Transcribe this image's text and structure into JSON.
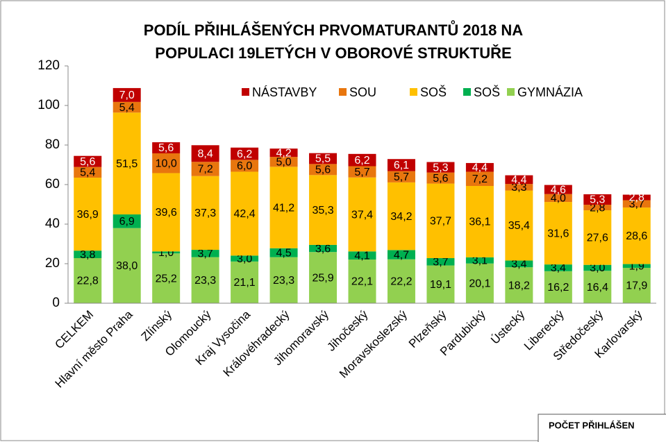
{
  "chart_data": {
    "type": "stacked_bar",
    "title": [
      "PODÍL PŘIHLÁŠENÝCH PRVOMATURANTŮ 2018 NA",
      "POPULACI 19LETÝCH  V OBOROVÉ STRUKTUŘE"
    ],
    "categories": [
      "CELKEM",
      "Hlavní město Praha",
      "Zlínský",
      "Olomoucký",
      "Kraj Vysočina",
      "Královéhradecký",
      "Jihomoravský",
      "Jihočeský",
      "Moravskoslezský",
      "Plzeňský",
      "Pardubický",
      "Ústecký",
      "Liberecký",
      "Středočeský",
      "Karlovarský"
    ],
    "series": [
      {
        "name": "GYMNÁZIA",
        "color": "#92d050",
        "values": [
          22.8,
          38.0,
          25.2,
          23.3,
          21.1,
          23.3,
          25.9,
          22.1,
          22.2,
          19.1,
          20.1,
          18.2,
          16.2,
          16.4,
          17.9
        ],
        "value_labels": [
          "22,8",
          "38,0",
          "25,2",
          "23,3",
          "21,1",
          "23,3",
          "25,9",
          "22,1",
          "22,2",
          "19,1",
          "20,1",
          "18,2",
          "16,2",
          "16,4",
          "17,9"
        ]
      },
      {
        "name": "SOŠ",
        "color": "#00b050",
        "values": [
          3.8,
          6.9,
          1.0,
          3.7,
          3.0,
          4.5,
          3.6,
          4.1,
          4.7,
          3.7,
          3.1,
          3.4,
          3.4,
          3.0,
          1.9
        ],
        "value_labels": [
          "3,8",
          "6,9",
          "1,0",
          "3,7",
          "3,0",
          "4,5",
          "3,6",
          "4,1",
          "4,7",
          "3,7",
          "3,1",
          "3,4",
          "3,4",
          "3,0",
          "1,9"
        ]
      },
      {
        "name": "SOŠ",
        "color": "#ffc000",
        "values": [
          36.9,
          51.5,
          39.6,
          37.3,
          42.4,
          41.2,
          35.3,
          37.4,
          34.2,
          37.7,
          36.1,
          35.4,
          31.6,
          27.6,
          28.6
        ],
        "value_labels": [
          "36,9",
          "51,5",
          "39,6",
          "37,3",
          "42,4",
          "41,2",
          "35,3",
          "37,4",
          "34,2",
          "37,7",
          "36,1",
          "35,4",
          "31,6",
          "27,6",
          "28,6"
        ]
      },
      {
        "name": "SOU",
        "color": "#e8760e",
        "values": [
          5.4,
          5.4,
          10.0,
          7.2,
          6.0,
          5.0,
          5.6,
          5.7,
          5.7,
          5.6,
          7.2,
          3.3,
          4.0,
          2.8,
          3.7
        ],
        "value_labels": [
          "5,4",
          "5,4",
          "10,0",
          "7,2",
          "6,0",
          "5,0",
          "5,6",
          "5,7",
          "5,7",
          "5,6",
          "7,2",
          "3,3",
          "4,0",
          "2,8",
          "3,7"
        ]
      },
      {
        "name": "NÁSTAVBY",
        "color": "#c00000",
        "values": [
          5.6,
          7.0,
          5.6,
          8.4,
          6.2,
          4.2,
          5.5,
          6.2,
          6.1,
          5.3,
          4.4,
          4.4,
          4.6,
          5.3,
          2.8
        ],
        "value_labels": [
          "5,6",
          "7,0",
          "5,6",
          "8,4",
          "6,2",
          "4,2",
          "5,5",
          "6,2",
          "6,1",
          "5,3",
          "4,4",
          "4,4",
          "4,6",
          "5,3",
          "2,8"
        ]
      }
    ],
    "ylim": [
      0,
      120
    ],
    "yticks": [
      0,
      20,
      40,
      60,
      80,
      100,
      120
    ],
    "annotation": "POČET PŘIHLÁŠEN"
  }
}
